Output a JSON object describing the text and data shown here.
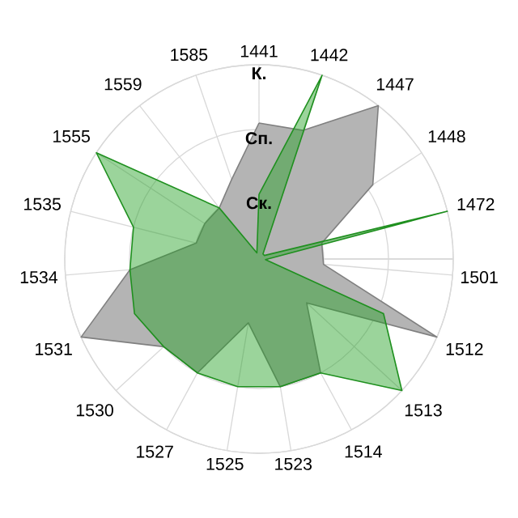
{
  "chart_data": {
    "type": "radar",
    "categories": [
      "1441",
      "1442",
      "1447",
      "1448",
      "1472",
      "1501",
      "1512",
      "1513",
      "1514",
      "1523",
      "1525",
      "1527",
      "1530",
      "1531",
      "1534",
      "1535",
      "1555",
      "1559",
      "1585"
    ],
    "series": [
      {
        "color": "#b4b4b4",
        "values": [
          2.1,
          2.1,
          3.0,
          2.1,
          1.0,
          1.0,
          3.0,
          1.0,
          2.0,
          2.0,
          1.0,
          2.0,
          2.0,
          3.0,
          2.0,
          1.0,
          1.0,
          1.0,
          1.3
        ]
      },
      {
        "color": "#22a022",
        "values": [
          1.0,
          3.0,
          0.1,
          0.1,
          3.0,
          0.1,
          2.1,
          3.0,
          2.0,
          2.0,
          2.0,
          2.0,
          2.0,
          2.1,
          2.0,
          2.0,
          3.0,
          1.0,
          0.1
        ]
      }
    ],
    "ylim": [
      0,
      3
    ],
    "yticks": [
      {
        "value": 1,
        "label": "Ск."
      },
      {
        "value": 2,
        "label": "Сп."
      },
      {
        "value": 3,
        "label": "К."
      }
    ],
    "grid": true
  }
}
